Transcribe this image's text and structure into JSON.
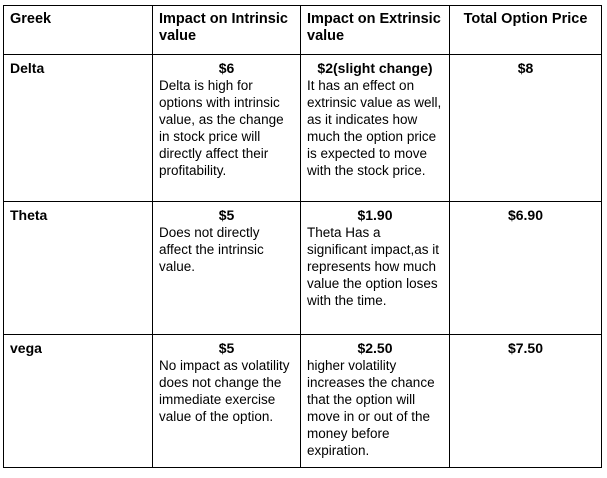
{
  "headers": [
    "Greek",
    "Impact on Intrinsic value",
    "Impact on Extrinsic value",
    "Total Option Price"
  ],
  "rows": [
    {
      "greek": "Delta",
      "intrinsic_value": "$6",
      "intrinsic_desc": "Delta is high for options with intrinsic value, as the change in stock price will directly affect their profitability.",
      "extrinsic_value": "$2(slight change)",
      "extrinsic_desc": "It has an effect on extrinsic value as well, as it indicates how much the option price is expected to move with the stock price.",
      "total": "$8"
    },
    {
      "greek": "Theta",
      "intrinsic_value": "$5",
      "intrinsic_desc": "Does not directly affect the intrinsic value.",
      "extrinsic_value": "$1.90",
      "extrinsic_desc": "Theta Has a significant impact,as it represents how much value the option loses with the time.",
      "total": "$6.90"
    },
    {
      "greek": "vega",
      "intrinsic_value": "$5",
      "intrinsic_desc": "No impact as volatility does not change the immediate exercise value of the option.",
      "extrinsic_value": "$2.50",
      "extrinsic_desc": "higher volatility increases the chance that the option will move in or out of the money before expiration.",
      "total": "$7.50"
    }
  ]
}
